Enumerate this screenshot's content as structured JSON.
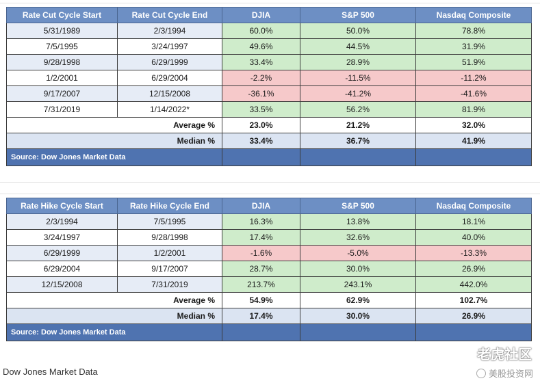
{
  "cut_table": {
    "headers": [
      "Rate Cut Cycle Start",
      "Rate Cut Cycle End",
      "DJIA",
      "S&P 500",
      "Nasdaq Composite"
    ],
    "rows": [
      {
        "start": "5/31/1989",
        "end": "2/3/1994",
        "djia": "60.0%",
        "sp": "50.0%",
        "nasdaq": "78.8%"
      },
      {
        "start": "7/5/1995",
        "end": "3/24/1997",
        "djia": "49.6%",
        "sp": "44.5%",
        "nasdaq": "31.9%"
      },
      {
        "start": "9/28/1998",
        "end": "6/29/1999",
        "djia": "33.4%",
        "sp": "28.9%",
        "nasdaq": "51.9%"
      },
      {
        "start": "1/2/2001",
        "end": "6/29/2004",
        "djia": "-2.2%",
        "sp": "-11.5%",
        "nasdaq": "-11.2%"
      },
      {
        "start": "9/17/2007",
        "end": "12/15/2008",
        "djia": "-36.1%",
        "sp": "-41.2%",
        "nasdaq": "-41.6%"
      },
      {
        "start": "7/31/2019",
        "end": "1/14/2022*",
        "djia": "33.5%",
        "sp": "56.2%",
        "nasdaq": "81.9%"
      }
    ],
    "average": {
      "label": "Average %",
      "djia": "23.0%",
      "sp": "21.2%",
      "nasdaq": "32.0%"
    },
    "median": {
      "label": "Median %",
      "djia": "33.4%",
      "sp": "36.7%",
      "nasdaq": "41.9%"
    },
    "source": "Source: Dow Jones Market Data"
  },
  "hike_table": {
    "headers": [
      "Rate Hike Cycle Start",
      "Rate Hike Cycle End",
      "DJIA",
      "S&P 500",
      "Nasdaq Composite"
    ],
    "rows": [
      {
        "start": "2/3/1994",
        "end": "7/5/1995",
        "djia": "16.3%",
        "sp": "13.8%",
        "nasdaq": "18.1%"
      },
      {
        "start": "3/24/1997",
        "end": "9/28/1998",
        "djia": "17.4%",
        "sp": "32.6%",
        "nasdaq": "40.0%"
      },
      {
        "start": "6/29/1999",
        "end": "1/2/2001",
        "djia": "-1.6%",
        "sp": "-5.0%",
        "nasdaq": "-13.3%"
      },
      {
        "start": "6/29/2004",
        "end": "9/17/2007",
        "djia": "28.7%",
        "sp": "30.0%",
        "nasdaq": "26.9%"
      },
      {
        "start": "12/15/2008",
        "end": "7/31/2019",
        "djia": "213.7%",
        "sp": "243.1%",
        "nasdaq": "442.0%"
      }
    ],
    "average": {
      "label": "Average %",
      "djia": "54.9%",
      "sp": "62.9%",
      "nasdaq": "102.7%"
    },
    "median": {
      "label": "Median %",
      "djia": "17.4%",
      "sp": "30.0%",
      "nasdaq": "26.9%"
    },
    "source": "Source: Dow Jones Market Data"
  },
  "caption": "Dow Jones Market Data",
  "watermark": {
    "main": "老虎社区",
    "sub": "美股投资网"
  },
  "colors": {
    "header": "#6d8fc4",
    "source_bar": "#4f73b0",
    "positive": "#cfeccb",
    "negative": "#f6c9ca",
    "alt_row": "#e6ecf6"
  }
}
